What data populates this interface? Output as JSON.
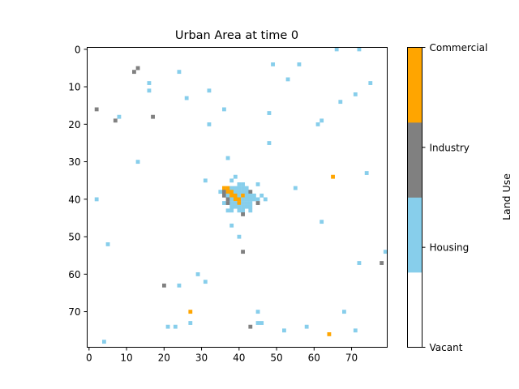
{
  "chart_data": {
    "type": "heatmap",
    "title": "Urban Area at time 0",
    "grid_size": [
      80,
      80
    ],
    "xlim": [
      0,
      79
    ],
    "ylim": [
      79,
      0
    ],
    "x_ticks": [
      0,
      10,
      20,
      30,
      40,
      50,
      60,
      70
    ],
    "y_ticks": [
      0,
      10,
      20,
      30,
      40,
      50,
      60,
      70
    ],
    "grid": false,
    "colorbar": {
      "label": "Land Use",
      "categories": [
        {
          "value": 0,
          "label": "Vacant",
          "color": "#ffffff"
        },
        {
          "value": 1,
          "label": "Housing",
          "color": "#87ceeb"
        },
        {
          "value": 2,
          "label": "Industry",
          "color": "#808080"
        },
        {
          "value": 3,
          "label": "Commercial",
          "color": "#ffa500"
        }
      ]
    },
    "cells": [
      [
        0,
        66,
        1
      ],
      [
        0,
        72,
        1
      ],
      [
        4,
        49,
        1
      ],
      [
        4,
        56,
        1
      ],
      [
        5,
        13,
        2
      ],
      [
        6,
        12,
        2
      ],
      [
        6,
        24,
        1
      ],
      [
        8,
        53,
        1
      ],
      [
        9,
        16,
        1
      ],
      [
        9,
        75,
        1
      ],
      [
        11,
        16,
        1
      ],
      [
        11,
        32,
        1
      ],
      [
        12,
        71,
        1
      ],
      [
        13,
        26,
        1
      ],
      [
        14,
        67,
        1
      ],
      [
        16,
        2,
        2
      ],
      [
        16,
        36,
        1
      ],
      [
        17,
        48,
        1
      ],
      [
        18,
        8,
        1
      ],
      [
        18,
        17,
        2
      ],
      [
        19,
        7,
        2
      ],
      [
        19,
        62,
        1
      ],
      [
        20,
        32,
        1
      ],
      [
        20,
        61,
        1
      ],
      [
        25,
        48,
        1
      ],
      [
        29,
        37,
        1
      ],
      [
        30,
        13,
        1
      ],
      [
        33,
        74,
        1
      ],
      [
        34,
        65,
        3
      ],
      [
        34,
        39,
        1
      ],
      [
        35,
        31,
        1
      ],
      [
        35,
        38,
        1
      ],
      [
        36,
        40,
        1
      ],
      [
        36,
        41,
        1
      ],
      [
        36,
        45,
        1
      ],
      [
        37,
        36,
        3
      ],
      [
        37,
        37,
        3
      ],
      [
        37,
        38,
        1
      ],
      [
        37,
        39,
        1
      ],
      [
        37,
        40,
        1
      ],
      [
        37,
        41,
        1
      ],
      [
        37,
        42,
        1
      ],
      [
        37,
        55,
        1
      ],
      [
        38,
        35,
        1
      ],
      [
        38,
        36,
        2
      ],
      [
        38,
        37,
        3
      ],
      [
        38,
        38,
        3
      ],
      [
        38,
        39,
        1
      ],
      [
        38,
        40,
        1
      ],
      [
        38,
        41,
        1
      ],
      [
        38,
        42,
        1
      ],
      [
        38,
        43,
        2
      ],
      [
        39,
        36,
        2
      ],
      [
        39,
        37,
        1
      ],
      [
        39,
        38,
        3
      ],
      [
        39,
        39,
        3
      ],
      [
        39,
        40,
        1
      ],
      [
        39,
        41,
        3
      ],
      [
        39,
        42,
        1
      ],
      [
        39,
        43,
        1
      ],
      [
        39,
        44,
        1
      ],
      [
        39,
        46,
        1
      ],
      [
        40,
        2,
        1
      ],
      [
        40,
        37,
        2
      ],
      [
        40,
        38,
        1
      ],
      [
        40,
        39,
        3
      ],
      [
        40,
        40,
        3
      ],
      [
        40,
        41,
        1
      ],
      [
        40,
        42,
        1
      ],
      [
        40,
        43,
        1
      ],
      [
        40,
        44,
        1
      ],
      [
        40,
        45,
        1
      ],
      [
        40,
        47,
        1
      ],
      [
        41,
        36,
        1
      ],
      [
        41,
        37,
        2
      ],
      [
        41,
        38,
        1
      ],
      [
        41,
        39,
        1
      ],
      [
        41,
        40,
        3
      ],
      [
        41,
        41,
        1
      ],
      [
        41,
        42,
        1
      ],
      [
        41,
        43,
        1
      ],
      [
        41,
        45,
        2
      ],
      [
        42,
        38,
        1
      ],
      [
        42,
        39,
        1
      ],
      [
        42,
        40,
        1
      ],
      [
        42,
        41,
        1
      ],
      [
        42,
        42,
        1
      ],
      [
        42,
        43,
        1
      ],
      [
        43,
        37,
        1
      ],
      [
        43,
        38,
        1
      ],
      [
        43,
        40,
        1
      ],
      [
        43,
        41,
        1
      ],
      [
        43,
        43,
        1
      ],
      [
        44,
        41,
        2
      ],
      [
        46,
        62,
        1
      ],
      [
        47,
        38,
        1
      ],
      [
        50,
        40,
        1
      ],
      [
        52,
        5,
        1
      ],
      [
        54,
        41,
        2
      ],
      [
        54,
        79,
        1
      ],
      [
        57,
        72,
        1
      ],
      [
        57,
        78,
        2
      ],
      [
        60,
        29,
        1
      ],
      [
        62,
        31,
        1
      ],
      [
        63,
        20,
        2
      ],
      [
        63,
        24,
        1
      ],
      [
        70,
        27,
        3
      ],
      [
        70,
        45,
        1
      ],
      [
        70,
        68,
        1
      ],
      [
        73,
        27,
        1
      ],
      [
        73,
        45,
        1
      ],
      [
        73,
        46,
        1
      ],
      [
        74,
        21,
        1
      ],
      [
        74,
        23,
        1
      ],
      [
        74,
        43,
        2
      ],
      [
        74,
        58,
        1
      ],
      [
        75,
        52,
        1
      ],
      [
        75,
        71,
        1
      ],
      [
        76,
        64,
        3
      ],
      [
        78,
        4,
        1
      ]
    ]
  }
}
